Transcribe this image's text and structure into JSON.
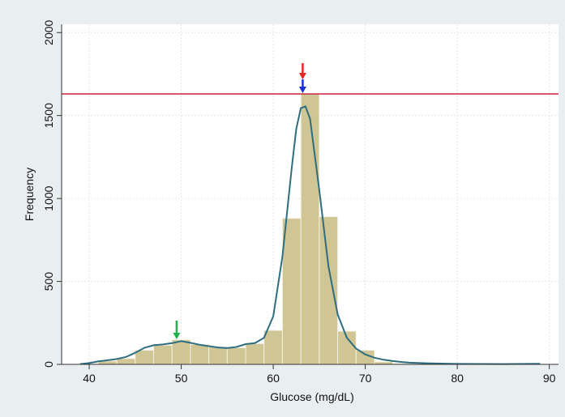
{
  "chart_data": {
    "type": "bar",
    "xlabel": "Glucose (mg/dL)",
    "ylabel": "Frequency",
    "xlim": [
      37,
      91
    ],
    "ylim": [
      0,
      2050
    ],
    "x_ticks": [
      40,
      50,
      60,
      70,
      80,
      90
    ],
    "y_ticks": [
      0,
      500,
      1000,
      1500,
      2000
    ],
    "grid": true,
    "bin_width": 2,
    "bins": [
      {
        "start": 39,
        "value": 3
      },
      {
        "start": 41,
        "value": 20
      },
      {
        "start": 43,
        "value": 35
      },
      {
        "start": 45,
        "value": 85
      },
      {
        "start": 47,
        "value": 115
      },
      {
        "start": 49,
        "value": 148
      },
      {
        "start": 51,
        "value": 120
      },
      {
        "start": 53,
        "value": 105
      },
      {
        "start": 55,
        "value": 100
      },
      {
        "start": 57,
        "value": 125
      },
      {
        "start": 59,
        "value": 205
      },
      {
        "start": 61,
        "value": 880
      },
      {
        "start": 63,
        "value": 1630
      },
      {
        "start": 65,
        "value": 890
      },
      {
        "start": 67,
        "value": 200
      },
      {
        "start": 69,
        "value": 85
      },
      {
        "start": 71,
        "value": 15
      },
      {
        "start": 73,
        "value": 5
      },
      {
        "start": 75,
        "value": 2
      }
    ],
    "density_curve": {
      "x": [
        39,
        40,
        41,
        42,
        43,
        44,
        45,
        46,
        47,
        48,
        49,
        50,
        51,
        52,
        53,
        54,
        55,
        56,
        57,
        58,
        59,
        60,
        61,
        62,
        62.5,
        63,
        63.5,
        64,
        65,
        66,
        67,
        68,
        69,
        70,
        71,
        72,
        73,
        74,
        75,
        77,
        80,
        85,
        89
      ],
      "y": [
        2,
        8,
        18,
        25,
        32,
        45,
        70,
        100,
        115,
        120,
        128,
        140,
        130,
        118,
        110,
        102,
        98,
        105,
        122,
        128,
        160,
        290,
        650,
        1180,
        1420,
        1545,
        1555,
        1480,
        1050,
        590,
        300,
        160,
        95,
        60,
        40,
        28,
        20,
        14,
        10,
        6,
        3,
        2,
        4
      ]
    },
    "reference_line": {
      "y": 1630,
      "color": "#c8253f"
    },
    "annotations": [
      {
        "x": 63.2,
        "type": "arrow",
        "color_top": "#ee2222",
        "color_bottom": "#1a2ee0"
      },
      {
        "x": 49.5,
        "type": "arrow",
        "color": "#22b04a"
      }
    ],
    "colors": {
      "bar_fill": "#d0c594",
      "bar_stroke": "#f4f0e0",
      "curve": "#2e6e80",
      "plot_background": "#ffffff",
      "outer_background": "#e9eff1"
    }
  }
}
